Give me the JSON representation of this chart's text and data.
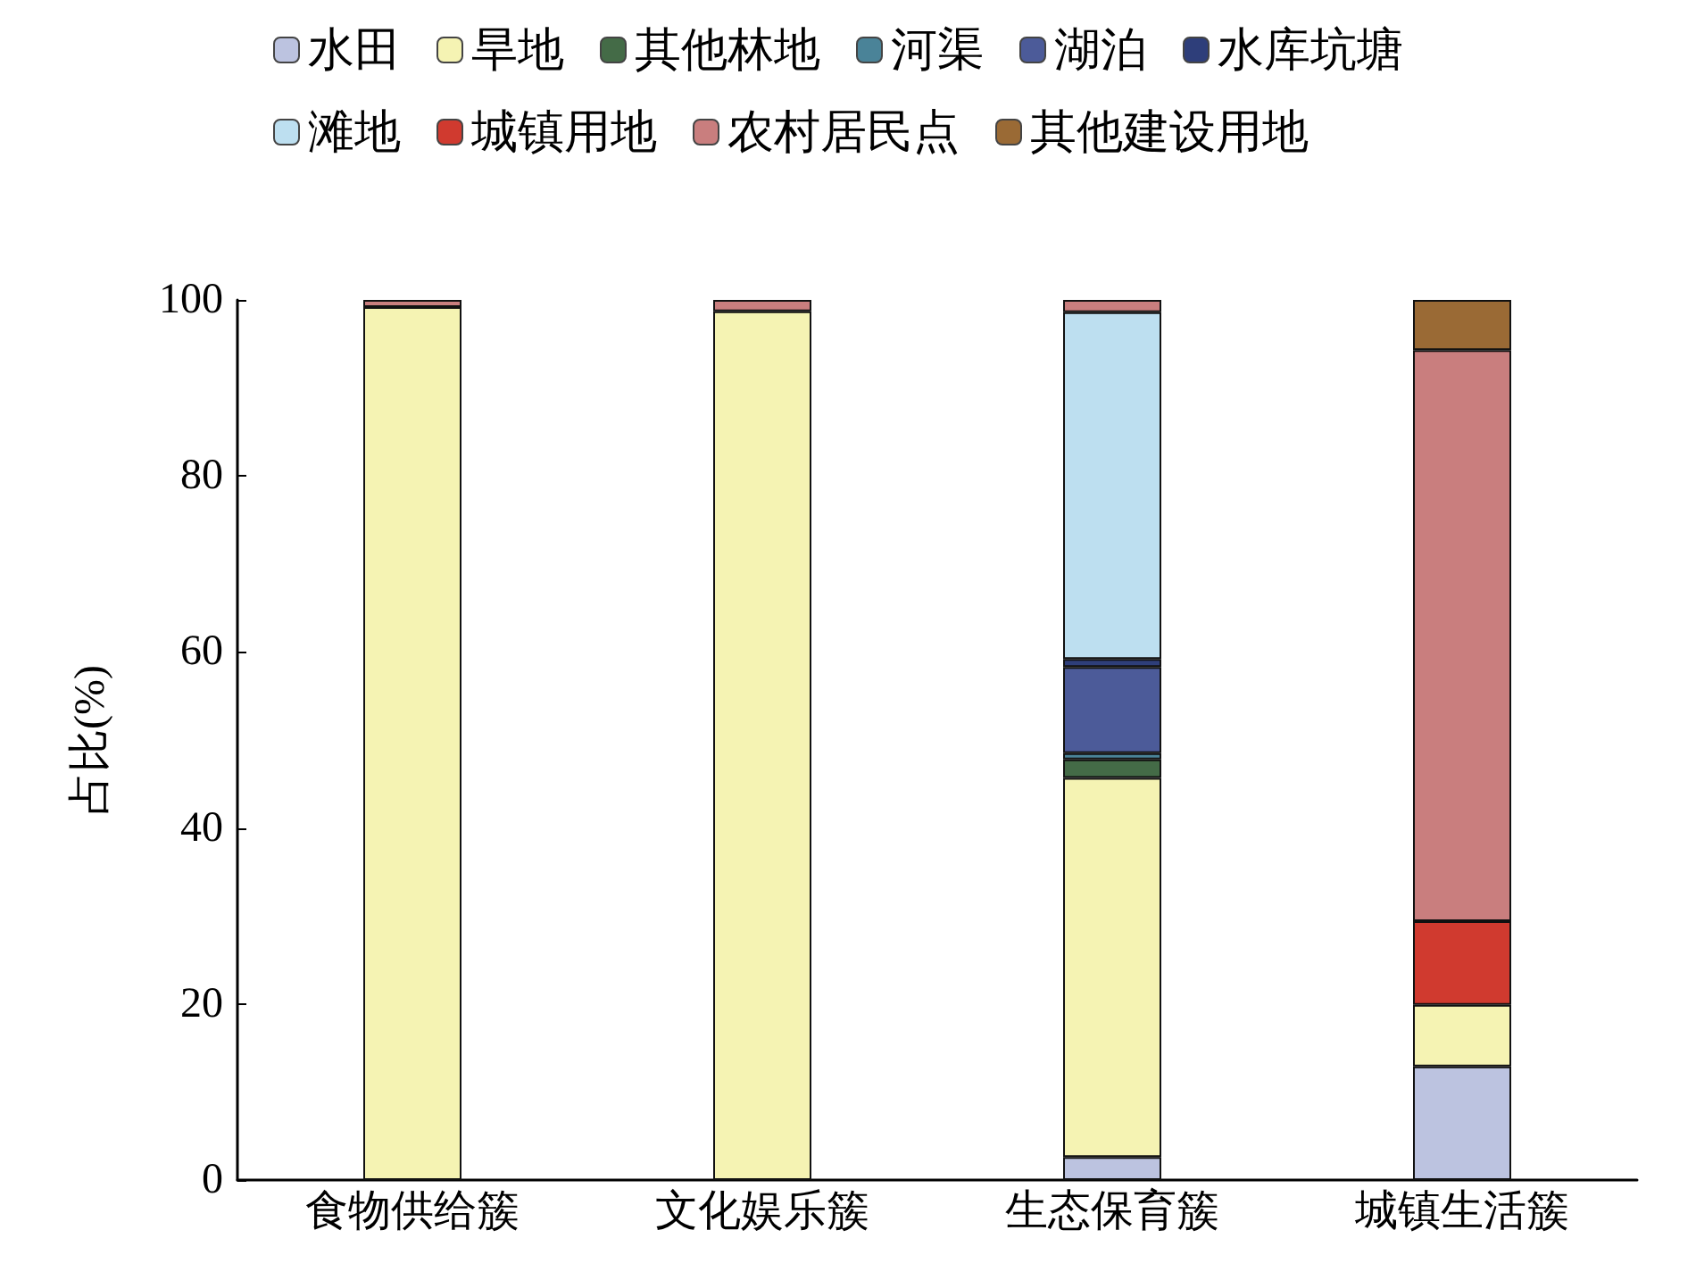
{
  "chart_data": {
    "type": "bar",
    "stacked": true,
    "ylabel": "占比(%)",
    "categories": [
      "食物供给簇",
      "文化娱乐簇",
      "生态保育簇",
      "城镇生活簇"
    ],
    "ylim": [
      0,
      100
    ],
    "yticks": [
      0,
      20,
      40,
      60,
      80,
      100
    ],
    "grid": false,
    "legend": "top",
    "series": [
      {
        "name": "水田",
        "color": "#bcc3e0",
        "values": [
          null,
          null,
          2.6,
          12.9
        ]
      },
      {
        "name": "旱地",
        "color": "#f5f3b3",
        "values": [
          99.2,
          98.7,
          43.1,
          7.0
        ]
      },
      {
        "name": "其他林地",
        "color": "#446b47",
        "values": [
          null,
          null,
          2.1,
          null
        ]
      },
      {
        "name": "河渠",
        "color": "#4a8398",
        "values": [
          null,
          null,
          0.7,
          null
        ]
      },
      {
        "name": "湖泊",
        "color": "#4c5b99",
        "values": [
          null,
          null,
          9.8,
          null
        ]
      },
      {
        "name": "水库坑塘",
        "color": "#2e3e7a",
        "values": [
          null,
          null,
          0.9,
          null
        ]
      },
      {
        "name": "滩地",
        "color": "#bddff0",
        "values": [
          null,
          null,
          39.4,
          null
        ]
      },
      {
        "name": "城镇用地",
        "color": "#d03a2f",
        "values": [
          null,
          null,
          null,
          9.5
        ]
      },
      {
        "name": "农村居民点",
        "color": "#c97e7e",
        "values": [
          0.8,
          1.3,
          1.4,
          64.9
        ]
      },
      {
        "name": "其他建设用地",
        "color": "#9a6a35",
        "values": [
          null,
          null,
          null,
          5.7
        ]
      }
    ]
  }
}
